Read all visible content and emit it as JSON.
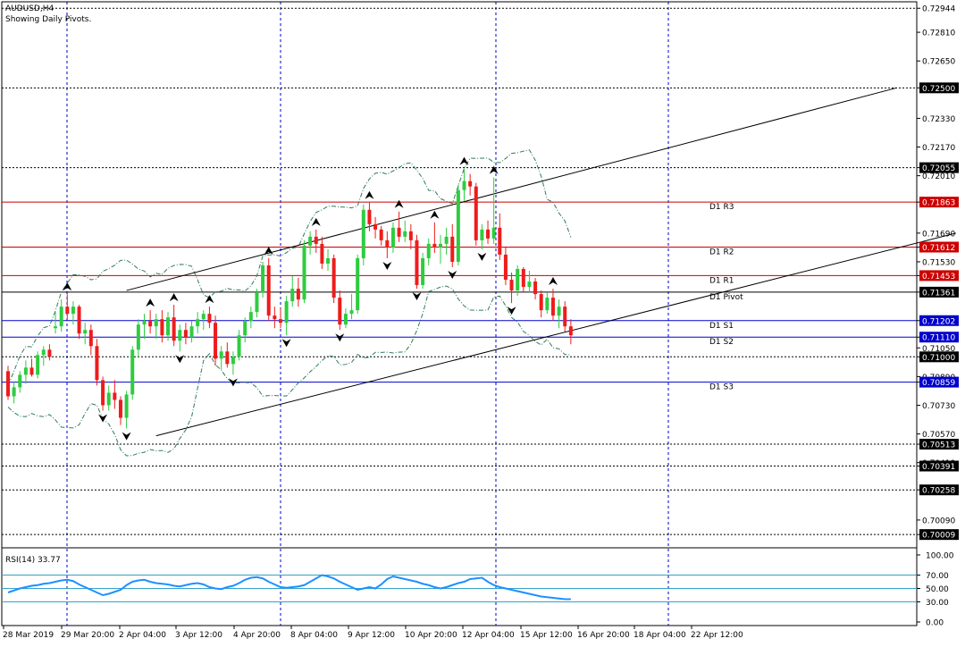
{
  "header": {
    "symbol_line": "AUDUSD,H4",
    "subtitle": "Showing Daily Pivots."
  },
  "colors": {
    "bull": "#2ecc40",
    "bear": "#ee1c1c",
    "grid": "#0000cc",
    "pivot_resist": "#cc0000",
    "pivot_support": "#0000cc",
    "pivot_main": "#000000",
    "rsi_line": "#1e90ff",
    "channel": "#000000",
    "envelope": "#2e7d5b"
  },
  "price_axis": {
    "min": 0.6995,
    "max": 0.7298,
    "ticks": [
      "0.72944",
      "0.72810",
      "0.72650",
      "0.72500",
      "0.72330",
      "0.72170",
      "0.72055",
      "0.72010",
      "0.71863",
      "0.71690",
      "0.71612",
      "0.71530",
      "0.71453",
      "0.71361",
      "0.71202",
      "0.71110",
      "0.71050",
      "0.71000",
      "0.70890",
      "0.70859",
      "0.70730",
      "0.70570",
      "0.70513",
      "0.70410",
      "0.70391",
      "0.70258",
      "0.70090",
      "0.70009"
    ],
    "boxed": [
      {
        "label": "0.72500",
        "style": "black"
      },
      {
        "label": "0.72055",
        "style": "black"
      },
      {
        "label": "0.71863",
        "style": "red"
      },
      {
        "label": "0.71612",
        "style": "red"
      },
      {
        "label": "0.71453",
        "style": "red"
      },
      {
        "label": "0.71361",
        "style": "black"
      },
      {
        "label": "0.71202",
        "style": "blue"
      },
      {
        "label": "0.71110",
        "style": "blue"
      },
      {
        "label": "0.71000",
        "style": "black"
      },
      {
        "label": "0.70859",
        "style": "blue"
      },
      {
        "label": "0.70513",
        "style": "black"
      },
      {
        "label": "0.70391",
        "style": "black"
      },
      {
        "label": "0.70258",
        "style": "black"
      },
      {
        "label": "0.70009",
        "style": "black"
      }
    ]
  },
  "pivots": [
    {
      "name": "D1 R3",
      "value": 0.71863,
      "kind": "resist"
    },
    {
      "name": "D1 R2",
      "value": 0.71612,
      "kind": "resist"
    },
    {
      "name": "D1 R1",
      "value": 0.71453,
      "kind": "resist"
    },
    {
      "name": "D1 Pivot",
      "value": 0.71361,
      "kind": "main"
    },
    {
      "name": "D1 S1",
      "value": 0.71202,
      "kind": "support"
    },
    {
      "name": "D1 S2",
      "value": 0.7111,
      "kind": "support"
    },
    {
      "name": "D1 S3",
      "value": 0.70859,
      "kind": "support"
    }
  ],
  "dotted_levels": [
    0.72944,
    0.725,
    0.72055,
    0.71,
    0.70513,
    0.70391,
    0.70258,
    0.70009
  ],
  "x_labels": [
    "28 Mar 2019",
    "29 Mar 20:00",
    "2 Apr 04:00",
    "3 Apr 12:00",
    "4 Apr 20:00",
    "8 Apr 04:00",
    "9 Apr 12:00",
    "10 Apr 20:00",
    "12 Apr 04:00",
    "15 Apr 12:00",
    "16 Apr 20:00",
    "18 Apr 04:00",
    "22 Apr 12:00"
  ],
  "chart_data": {
    "type": "candlestick",
    "title": "AUDUSD,H4",
    "ylim": [
      0.6995,
      0.7298
    ],
    "candles": [
      [
        0.7092,
        0.7095,
        0.7076,
        0.7078
      ],
      [
        0.7078,
        0.7086,
        0.7074,
        0.7083
      ],
      [
        0.7083,
        0.7092,
        0.708,
        0.709
      ],
      [
        0.709,
        0.7098,
        0.7085,
        0.7094
      ],
      [
        0.7094,
        0.7099,
        0.7089,
        0.709
      ],
      [
        0.709,
        0.7103,
        0.7088,
        0.7101
      ],
      [
        0.7101,
        0.7106,
        0.7095,
        0.7104
      ],
      [
        0.7104,
        0.7107,
        0.7098,
        0.71
      ],
      [
        0.7116,
        0.7125,
        0.7113,
        0.7117
      ],
      [
        0.7117,
        0.7132,
        0.7114,
        0.7128
      ],
      [
        0.7128,
        0.7135,
        0.7121,
        0.7124
      ],
      [
        0.7124,
        0.7131,
        0.7118,
        0.7128
      ],
      [
        0.7128,
        0.7129,
        0.711,
        0.7113
      ],
      [
        0.7113,
        0.7119,
        0.7107,
        0.7115
      ],
      [
        0.7115,
        0.7118,
        0.7101,
        0.7106
      ],
      [
        0.7106,
        0.711,
        0.7084,
        0.7087
      ],
      [
        0.7087,
        0.7089,
        0.707,
        0.7073
      ],
      [
        0.7073,
        0.7084,
        0.707,
        0.708
      ],
      [
        0.708,
        0.7087,
        0.7071,
        0.7076
      ],
      [
        0.7076,
        0.7078,
        0.7062,
        0.7066
      ],
      [
        0.7066,
        0.7081,
        0.706,
        0.7079
      ],
      [
        0.7079,
        0.7106,
        0.7076,
        0.7104
      ],
      [
        0.7104,
        0.7121,
        0.71,
        0.7118
      ],
      [
        0.7118,
        0.7124,
        0.711,
        0.712
      ],
      [
        0.712,
        0.7126,
        0.7113,
        0.7117
      ],
      [
        0.7117,
        0.7124,
        0.711,
        0.7121
      ],
      [
        0.7121,
        0.7126,
        0.7108,
        0.7112
      ],
      [
        0.7112,
        0.7125,
        0.7109,
        0.7122
      ],
      [
        0.7122,
        0.7129,
        0.7106,
        0.7109
      ],
      [
        0.7109,
        0.7118,
        0.7103,
        0.7115
      ],
      [
        0.7115,
        0.7119,
        0.7107,
        0.7111
      ],
      [
        0.7111,
        0.712,
        0.7108,
        0.7117
      ],
      [
        0.7117,
        0.7125,
        0.7113,
        0.7121
      ],
      [
        0.7121,
        0.7126,
        0.7115,
        0.7124
      ],
      [
        0.7124,
        0.7128,
        0.7116,
        0.7119
      ],
      [
        0.7119,
        0.7123,
        0.7095,
        0.7099
      ],
      [
        0.7099,
        0.7106,
        0.7093,
        0.7103
      ],
      [
        0.7103,
        0.7108,
        0.7094,
        0.7096
      ],
      [
        0.7096,
        0.7103,
        0.709,
        0.71
      ],
      [
        0.71,
        0.7115,
        0.7098,
        0.7112
      ],
      [
        0.7112,
        0.7122,
        0.7108,
        0.712
      ],
      [
        0.712,
        0.7128,
        0.7116,
        0.7125
      ],
      [
        0.7125,
        0.7138,
        0.7122,
        0.7136
      ],
      [
        0.7136,
        0.7153,
        0.7133,
        0.7151
      ],
      [
        0.7151,
        0.7155,
        0.712,
        0.7123
      ],
      [
        0.7123,
        0.7128,
        0.7116,
        0.7121
      ],
      [
        0.7121,
        0.7127,
        0.7116,
        0.7119
      ],
      [
        0.7119,
        0.7134,
        0.7112,
        0.7131
      ],
      [
        0.7131,
        0.7145,
        0.7128,
        0.7138
      ],
      [
        0.7138,
        0.7144,
        0.7128,
        0.7132
      ],
      [
        0.7132,
        0.7165,
        0.713,
        0.7162
      ],
      [
        0.7162,
        0.717,
        0.7157,
        0.7167
      ],
      [
        0.7167,
        0.7171,
        0.7158,
        0.7163
      ],
      [
        0.7163,
        0.7167,
        0.7149,
        0.7152
      ],
      [
        0.7152,
        0.716,
        0.7148,
        0.7155
      ],
      [
        0.7155,
        0.7157,
        0.713,
        0.7133
      ],
      [
        0.7133,
        0.7137,
        0.7115,
        0.7118
      ],
      [
        0.7118,
        0.7127,
        0.7116,
        0.7124
      ],
      [
        0.7124,
        0.7135,
        0.7121,
        0.7126
      ],
      [
        0.7126,
        0.7157,
        0.7124,
        0.7155
      ],
      [
        0.7155,
        0.7185,
        0.7151,
        0.7182
      ],
      [
        0.7182,
        0.7186,
        0.717,
        0.7174
      ],
      [
        0.7174,
        0.7178,
        0.7166,
        0.7171
      ],
      [
        0.7171,
        0.7173,
        0.7162,
        0.7165
      ],
      [
        0.7165,
        0.717,
        0.7155,
        0.7161
      ],
      [
        0.7161,
        0.7175,
        0.7158,
        0.7172
      ],
      [
        0.7172,
        0.7181,
        0.7164,
        0.7167
      ],
      [
        0.7167,
        0.7176,
        0.7164,
        0.717
      ],
      [
        0.717,
        0.7174,
        0.716,
        0.7165
      ],
      [
        0.7165,
        0.7168,
        0.7138,
        0.714
      ],
      [
        0.714,
        0.7158,
        0.7138,
        0.7155
      ],
      [
        0.7155,
        0.7166,
        0.7151,
        0.7163
      ],
      [
        0.7163,
        0.7175,
        0.7158,
        0.7161
      ],
      [
        0.7161,
        0.7168,
        0.7152,
        0.7163
      ],
      [
        0.7163,
        0.7172,
        0.7157,
        0.7167
      ],
      [
        0.7167,
        0.7174,
        0.715,
        0.7153
      ],
      [
        0.7153,
        0.7196,
        0.7151,
        0.7193
      ],
      [
        0.7193,
        0.7205,
        0.7187,
        0.7198
      ],
      [
        0.7198,
        0.7202,
        0.719,
        0.7195
      ],
      [
        0.7195,
        0.7197,
        0.7162,
        0.7165
      ],
      [
        0.7165,
        0.7174,
        0.716,
        0.7171
      ],
      [
        0.7171,
        0.7176,
        0.7163,
        0.7166
      ],
      [
        0.7166,
        0.72,
        0.7163,
        0.7172
      ],
      [
        0.7172,
        0.718,
        0.7154,
        0.7157
      ],
      [
        0.7157,
        0.7161,
        0.714,
        0.7143
      ],
      [
        0.7143,
        0.7147,
        0.713,
        0.7137
      ],
      [
        0.7137,
        0.7151,
        0.7134,
        0.7149
      ],
      [
        0.7149,
        0.715,
        0.7136,
        0.7139
      ],
      [
        0.7139,
        0.7148,
        0.7136,
        0.7142
      ],
      [
        0.7142,
        0.7144,
        0.7132,
        0.7135
      ],
      [
        0.7135,
        0.7137,
        0.7122,
        0.7126
      ],
      [
        0.7126,
        0.7136,
        0.7124,
        0.7133
      ],
      [
        0.7133,
        0.7138,
        0.712,
        0.7123
      ],
      [
        0.7123,
        0.7132,
        0.7116,
        0.7128
      ],
      [
        0.7128,
        0.7131,
        0.7114,
        0.7117
      ],
      [
        0.7117,
        0.7121,
        0.7107,
        0.7112
      ]
    ],
    "channel_upper": {
      "from": [
        20,
        0.7137
      ],
      "to": [
        150,
        0.725
      ]
    },
    "channel_lower": {
      "from": [
        25,
        0.7056
      ],
      "to": [
        160,
        0.7169
      ]
    },
    "rsi": {
      "label": "RSI(14) 33.77",
      "levels": [
        "100.00",
        "70.00",
        "50.00",
        "30.00",
        "0.00"
      ],
      "values": [
        44,
        47,
        50,
        52,
        54,
        55,
        57,
        58,
        60,
        62,
        63,
        61,
        56,
        52,
        48,
        44,
        40,
        42,
        45,
        48,
        55,
        60,
        62,
        63,
        60,
        58,
        57,
        56,
        54,
        53,
        55,
        57,
        58,
        56,
        52,
        50,
        49,
        52,
        54,
        58,
        63,
        66,
        67,
        65,
        60,
        56,
        52,
        51,
        52,
        53,
        55,
        60,
        65,
        70,
        68,
        65,
        60,
        56,
        52,
        48,
        50,
        52,
        50,
        56,
        64,
        68,
        66,
        64,
        62,
        60,
        57,
        55,
        52,
        50,
        52,
        55,
        58,
        60,
        64,
        65,
        66,
        60,
        55,
        52,
        50,
        48,
        46,
        44,
        42,
        40,
        38,
        37,
        36,
        35,
        34,
        34
      ]
    }
  }
}
